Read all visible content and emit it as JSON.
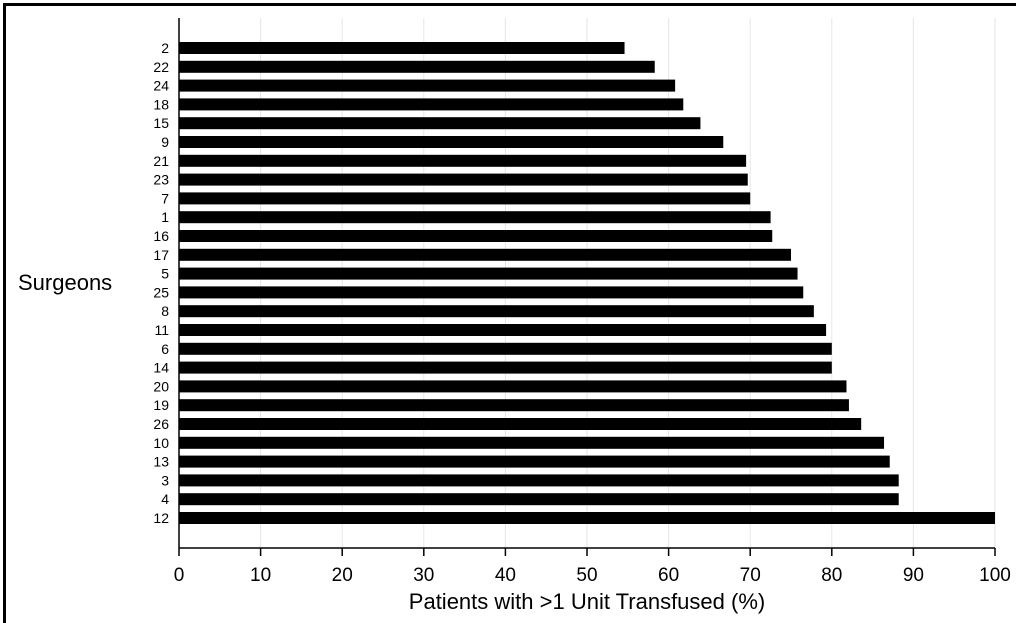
{
  "chart_data": {
    "type": "bar",
    "orientation": "horizontal",
    "title": "",
    "xlabel": "Patients with >1 Unit Transfused (%)",
    "ylabel": "Surgeons",
    "xlim": [
      0,
      100
    ],
    "xticks": [
      0,
      10,
      20,
      30,
      40,
      50,
      60,
      70,
      80,
      90,
      100
    ],
    "grid": true,
    "categories": [
      "2",
      "22",
      "24",
      "18",
      "15",
      "9",
      "21",
      "23",
      "7",
      "1",
      "16",
      "17",
      "5",
      "25",
      "8",
      "11",
      "6",
      "14",
      "20",
      "19",
      "26",
      "10",
      "13",
      "3",
      "4",
      "12"
    ],
    "values": [
      54.6,
      58.3,
      60.8,
      61.8,
      63.9,
      66.7,
      69.5,
      69.7,
      70.0,
      72.5,
      72.7,
      75.0,
      75.8,
      76.5,
      77.8,
      79.3,
      80.0,
      80.0,
      81.8,
      82.1,
      83.6,
      86.4,
      87.1,
      88.2,
      88.2,
      100.0
    ],
    "colors": {
      "bar": "#000000",
      "grid": "#e6e6e6",
      "axis": "#000000"
    }
  }
}
